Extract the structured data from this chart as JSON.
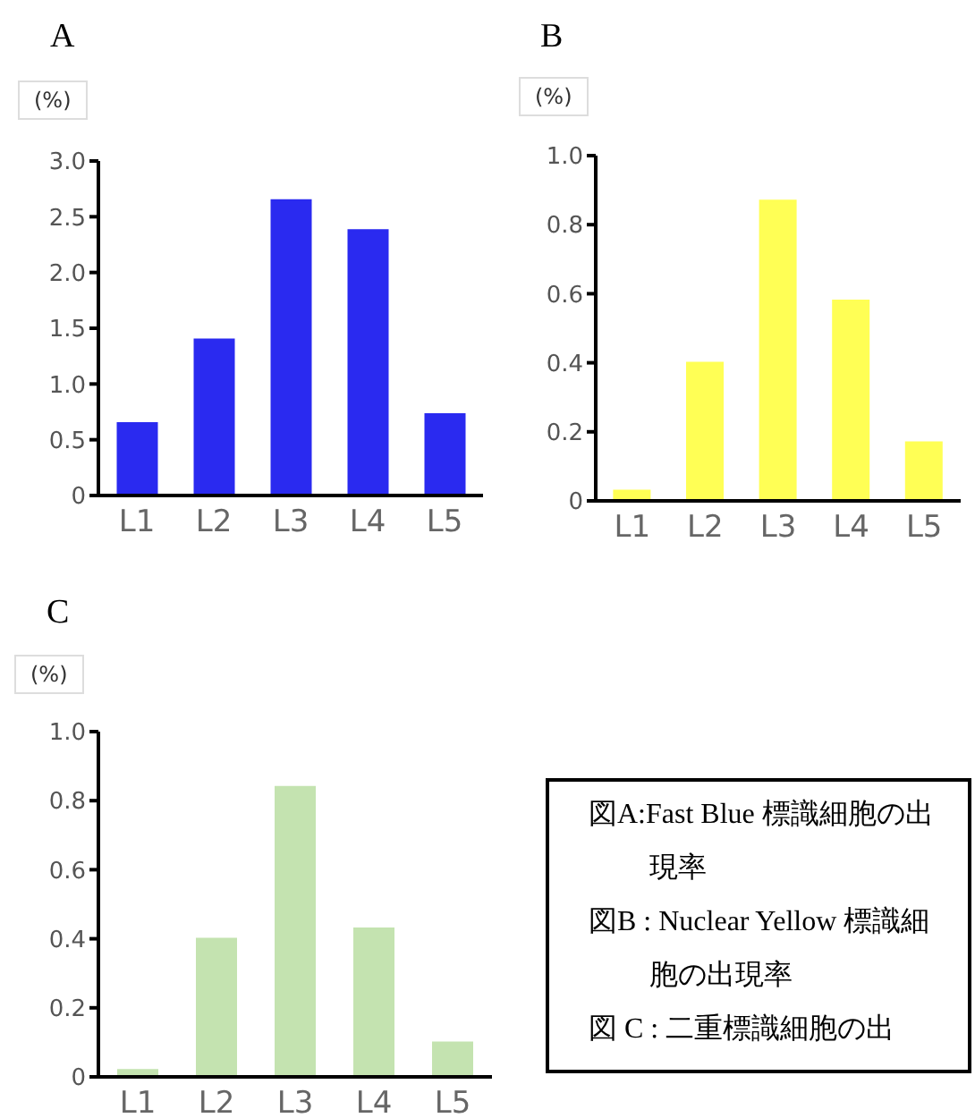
{
  "chart_data": [
    {
      "type": "bar",
      "title": "A",
      "ylabel": "(%)",
      "categories": [
        "L1",
        "L2",
        "L3",
        "L4",
        "L5"
      ],
      "values": [
        0.65,
        1.4,
        2.65,
        2.38,
        0.73
      ],
      "color": "#2a2af0",
      "ylim": [
        0,
        3
      ],
      "yticks": [
        0,
        {
          "value": 0.5,
          "label": "0.5"
        },
        {
          "value": 1,
          "label": "1.0"
        },
        {
          "value": 1.5,
          "label": "1.5"
        },
        {
          "value": 2,
          "label": "2.0"
        },
        {
          "value": 2.5,
          "label": "2.5"
        },
        {
          "value": 3,
          "label": "3.0"
        }
      ],
      "grid": false,
      "legend": false
    },
    {
      "type": "bar",
      "title": "B",
      "ylabel": "(%)",
      "categories": [
        "L1",
        "L2",
        "L3",
        "L4",
        "L5"
      ],
      "values": [
        0.03,
        0.4,
        0.87,
        0.58,
        0.17
      ],
      "color": "#ffff55",
      "ylim": [
        0,
        1
      ],
      "yticks": [
        0,
        0.2,
        0.4,
        0.6,
        0.8,
        {
          "value": 1,
          "label": "1.0"
        }
      ],
      "grid": false,
      "legend": false
    },
    {
      "type": "bar",
      "title": "C",
      "ylabel": "(%)",
      "categories": [
        "L1",
        "L2",
        "L3",
        "L4",
        "L5"
      ],
      "values": [
        0.02,
        0.4,
        0.84,
        0.43,
        0.1
      ],
      "color": "#c4e3b0",
      "ylim": [
        0,
        1
      ],
      "yticks": [
        0,
        0.2,
        0.4,
        0.6,
        0.8,
        {
          "value": 1,
          "label": "1.0"
        }
      ],
      "grid": false,
      "legend": false
    },
    {
      "type": "other",
      "annotations": [
        "図A:Fast Blue 標識細胞の出現率",
        "図B : Nuclear Yellow 標識細胞の出現率",
        "図 C : 二重標識細胞の出"
      ]
    }
  ]
}
